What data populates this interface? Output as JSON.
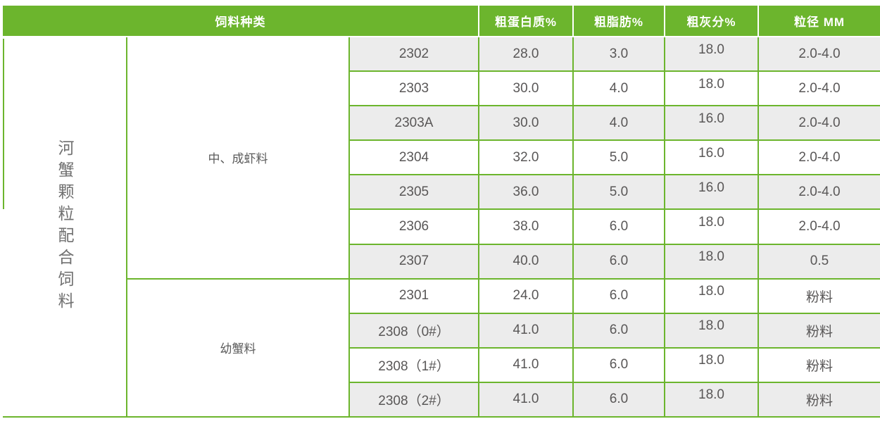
{
  "colors": {
    "accent_green": "#6CB52D",
    "stripe_grey": "#ECECEC",
    "header_text": "#FFFFFF",
    "body_text": "#595757"
  },
  "chart_data": {
    "type": "table",
    "header": {
      "feed_type_label": "饲料种类",
      "columns": [
        "粗蛋白质%",
        "粗脂肪%",
        "粗灰分%",
        "粒径 MM"
      ]
    },
    "row_category": "河蟹颗粒配合饲料",
    "groups": [
      {
        "label": "中、成虾料",
        "rows": [
          {
            "code": "2302",
            "protein": "28.0",
            "fat": "3.0",
            "ash": "18.0",
            "size": "2.0-4.0"
          },
          {
            "code": "2303",
            "protein": "30.0",
            "fat": "4.0",
            "ash": "18.0",
            "size": "2.0-4.0"
          },
          {
            "code": "2303A",
            "protein": "30.0",
            "fat": "4.0",
            "ash": "16.0",
            "size": "2.0-4.0"
          },
          {
            "code": "2304",
            "protein": "32.0",
            "fat": "5.0",
            "ash": "16.0",
            "size": "2.0-4.0"
          },
          {
            "code": "2305",
            "protein": "36.0",
            "fat": "5.0",
            "ash": "16.0",
            "size": "2.0-4.0"
          },
          {
            "code": "2306",
            "protein": "38.0",
            "fat": "6.0",
            "ash": "18.0",
            "size": "2.0-4.0"
          },
          {
            "code": "2307",
            "protein": "40.0",
            "fat": "6.0",
            "ash": "18.0",
            "size": "0.5"
          }
        ]
      },
      {
        "label": "幼蟹料",
        "rows": [
          {
            "code": "2301",
            "protein": "24.0",
            "fat": "6.0",
            "ash": "18.0",
            "size": "粉料"
          },
          {
            "code": "2308（0#）",
            "protein": "41.0",
            "fat": "6.0",
            "ash": "18.0",
            "size": "粉料"
          },
          {
            "code": "2308（1#）",
            "protein": "41.0",
            "fat": "6.0",
            "ash": "18.0",
            "size": "粉料"
          },
          {
            "code": "2308（2#）",
            "protein": "41.0",
            "fat": "6.0",
            "ash": "18.0",
            "size": "粉料"
          }
        ]
      }
    ]
  }
}
